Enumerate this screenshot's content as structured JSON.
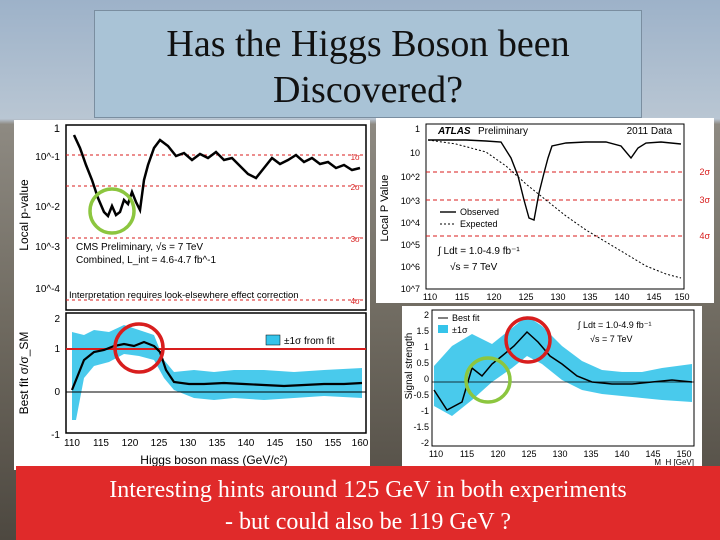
{
  "slide": {
    "title_line1": "Has the Higgs Boson been",
    "title_line2": "Discovered?",
    "caption_line1": "Interesting hints around 125 GeV in both experiments",
    "caption_line2": "- but could also be 119 GeV ?"
  },
  "cms": {
    "pvalue_ylabel": "Local p-value",
    "y_ticks_top": [
      "1",
      "10^-1",
      "10^-2",
      "10^-3",
      "10^-4"
    ],
    "sigma_labels": [
      "1σ",
      "2σ",
      "3σ",
      "4σ"
    ],
    "legend_line1": "CMS Preliminary, √s = 7 TeV",
    "legend_line2": "Combined, L_int = 4.6-4.7 fb^-1",
    "note": "Interpretation requires look-elsewhere effect correction",
    "bestfit_ylabel": "Best fit σ/σ_SM",
    "band_legend": "±1σ from fit",
    "y_ticks_bottom": [
      "2",
      "1",
      "0",
      "-1"
    ],
    "xlabel": "Higgs boson mass (GeV/c²)",
    "x_ticks": [
      "110",
      "115",
      "120",
      "125",
      "130",
      "135",
      "140",
      "145",
      "150",
      "155",
      "160"
    ]
  },
  "atlas": {
    "brand": "ATLAS",
    "brand_suffix": "Preliminary",
    "data_label": "2011 Data",
    "pvalue_ylabel": "Local P Value",
    "y_ticks_top": [
      "1",
      "10",
      "10^2",
      "10^3",
      "10^4",
      "10^5",
      "10^6",
      "10^7"
    ],
    "sigma_labels": [
      "2σ",
      "3σ",
      "4σ"
    ],
    "legend_observed": "Observed",
    "legend_expected": "Expected",
    "lumi": "∫ Ldt = 1.0-4.9 fb⁻¹",
    "energy": "√s = 7 TeV",
    "x_ticks_top": [
      "110",
      "115",
      "120",
      "125",
      "130",
      "135",
      "140",
      "145",
      "150"
    ],
    "signal_ylabel": "Signal strength",
    "legend_bestfit": "Best fit",
    "legend_band": "±1σ",
    "lumi2": "∫ Ldt = 1.0-4.9 fb⁻¹",
    "energy2": "√s = 7 TeV",
    "y_ticks_bottom": [
      "2",
      "1.5",
      "1",
      "0.5",
      "0",
      "-0.5",
      "-1",
      "-1.5",
      "-2"
    ],
    "x_ticks_bottom": [
      "110",
      "115",
      "120",
      "125",
      "130",
      "135",
      "140",
      "145",
      "150"
    ],
    "xlabel": "M_H [GeV]"
  },
  "colors": {
    "band": "#35c4ea",
    "red": "#d81e1e",
    "green": "#8cc63f",
    "caption_bg": "#e02a2a",
    "title_bg": "#a9c3d6"
  }
}
